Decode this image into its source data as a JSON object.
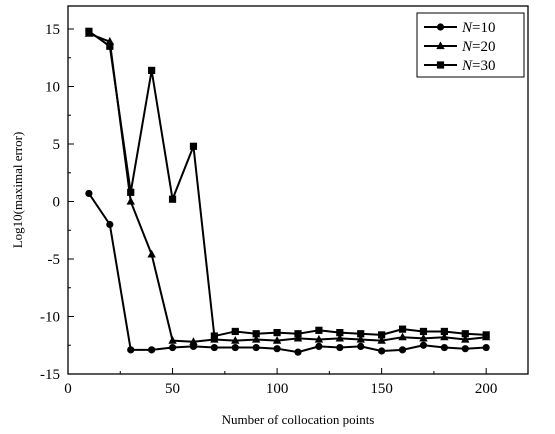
{
  "chart_data": {
    "type": "line",
    "title": "",
    "xlabel": "Number of collocation points",
    "ylabel": "Log10(maximal error)",
    "xlim": [
      0,
      220
    ],
    "ylim": [
      -15,
      17
    ],
    "xticks": [
      0,
      50,
      100,
      150,
      200
    ],
    "yticks": [
      -15,
      -10,
      -5,
      0,
      5,
      10,
      15
    ],
    "grid": false,
    "legend_position": "top-right",
    "series": [
      {
        "label_prefix": "N",
        "label_suffix": "=10",
        "marker": "circle",
        "color": "#000000",
        "x": [
          10,
          20,
          30,
          40,
          50,
          60,
          70,
          80,
          90,
          100,
          110,
          120,
          130,
          140,
          150,
          160,
          170,
          180,
          190,
          200
        ],
        "y": [
          0.7,
          -2.0,
          -12.9,
          -12.9,
          -12.7,
          -12.6,
          -12.7,
          -12.7,
          -12.7,
          -12.8,
          -13.1,
          -12.6,
          -12.7,
          -12.6,
          -13.0,
          -12.9,
          -12.5,
          -12.7,
          -12.8,
          -12.7
        ]
      },
      {
        "label_prefix": "N",
        "label_suffix": "=20",
        "marker": "triangle",
        "color": "#000000",
        "x": [
          10,
          20,
          30,
          40,
          50,
          60,
          70,
          80,
          90,
          100,
          110,
          120,
          130,
          140,
          150,
          160,
          170,
          180,
          190,
          200
        ],
        "y": [
          14.6,
          13.9,
          0.0,
          -4.6,
          -12.1,
          -12.2,
          -12.0,
          -12.1,
          -12.0,
          -12.1,
          -11.9,
          -12.0,
          -11.9,
          -12.0,
          -12.1,
          -11.8,
          -11.9,
          -11.8,
          -12.0,
          -11.8
        ]
      },
      {
        "label_prefix": "N",
        "label_suffix": "=30",
        "marker": "square",
        "color": "#000000",
        "x": [
          10,
          20,
          30,
          40,
          50,
          60,
          70,
          80,
          90,
          100,
          110,
          120,
          130,
          140,
          150,
          160,
          170,
          180,
          190,
          200
        ],
        "y": [
          14.8,
          13.5,
          0.8,
          11.4,
          0.2,
          4.8,
          -11.7,
          -11.3,
          -11.5,
          -11.4,
          -11.5,
          -11.2,
          -11.4,
          -11.5,
          -11.6,
          -11.1,
          -11.3,
          -11.3,
          -11.5,
          -11.6
        ]
      }
    ]
  }
}
